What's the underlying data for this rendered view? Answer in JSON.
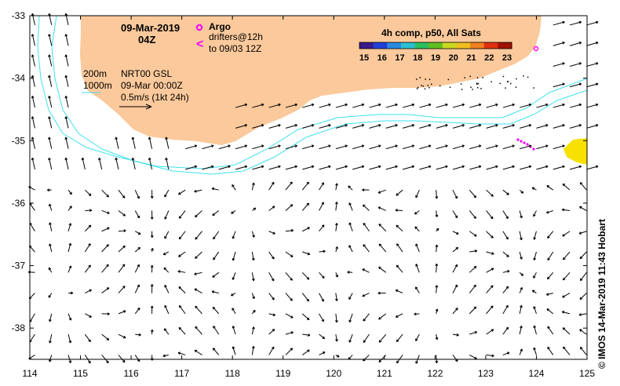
{
  "title": {
    "date": "09-Mar-2019",
    "time": "04Z"
  },
  "legend": {
    "argo_label": "Argo",
    "drifters_line1": "drifters@12h",
    "drifters_line2": "to 09/03 12Z",
    "contour_200": "200m",
    "contour_1000": "1000m",
    "source_line1": "NRT00 GSL",
    "source_line2": "09-Mar 00:00Z",
    "scale_line": "0.5m/s (1kt 24h)"
  },
  "colorbar": {
    "title": "4h comp, p50, All Sats",
    "ticks": [
      "15",
      "16",
      "17",
      "18",
      "19",
      "20",
      "21",
      "22",
      "23"
    ],
    "colors": [
      "#3a1a8c",
      "#2040d8",
      "#2a8ae0",
      "#2cc0d0",
      "#2ec060",
      "#60c020",
      "#c8d820",
      "#f0c020",
      "#f08020",
      "#e03010",
      "#a01000"
    ]
  },
  "axes": {
    "xlim": [
      114,
      125
    ],
    "ylim": [
      -38.5,
      -33
    ],
    "x_ticks": [
      "114",
      "115",
      "116",
      "117",
      "118",
      "119",
      "120",
      "121",
      "122",
      "123",
      "124",
      "125"
    ],
    "y_ticks": [
      "-33",
      "-34",
      "-35",
      "-36",
      "-37",
      "-38"
    ]
  },
  "credit": "© IMOS 14-Mar-2019 11:43 Hobart",
  "colors": {
    "land": "#fbc99b",
    "contour": "#40e0f0",
    "argo": "#ff00ff",
    "sst_patch": "#f8e000"
  }
}
